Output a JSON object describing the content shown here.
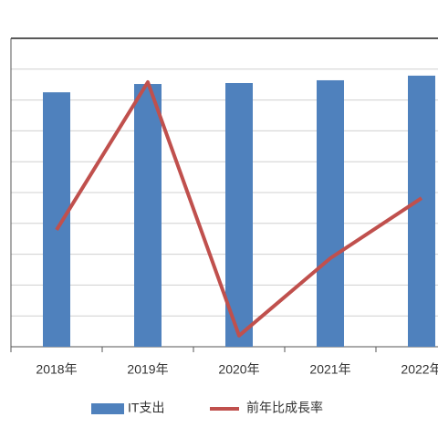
{
  "chart_data": {
    "type": "bar-line",
    "categories": [
      "2018年",
      "2019年",
      "2020年",
      "2021年",
      "2022年"
    ],
    "series": [
      {
        "name": "IT支出",
        "type": "bar",
        "color": "#4f81bd",
        "values": [
          8.25,
          8.52,
          8.55,
          8.64,
          8.79
        ]
      },
      {
        "name": "前年比成長率",
        "type": "line",
        "color": "#c0504d",
        "values": [
          3.79,
          8.58,
          0.36,
          2.87,
          4.82
        ]
      }
    ],
    "ylim": [
      0,
      10
    ],
    "yticks": [
      0,
      1,
      2,
      3,
      4,
      5,
      6,
      7,
      8,
      9,
      10
    ],
    "grid": true
  }
}
